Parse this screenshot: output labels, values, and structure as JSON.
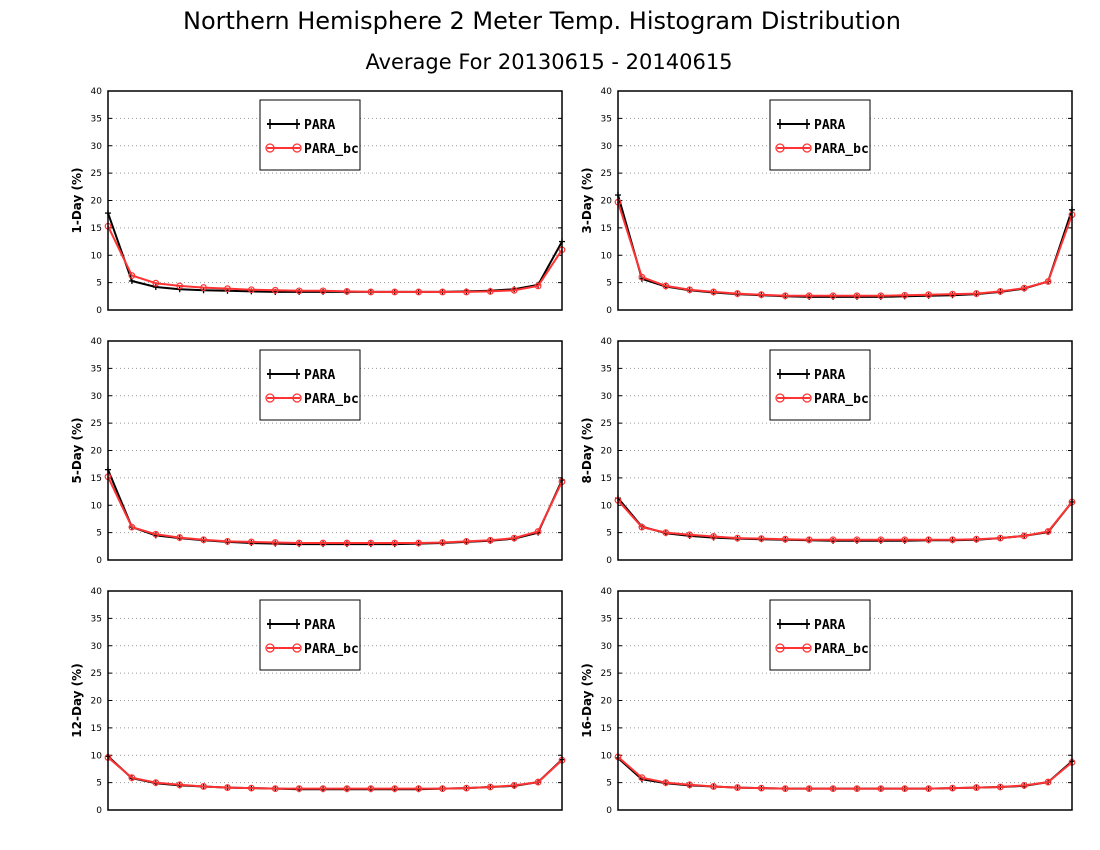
{
  "title": "Northern Hemisphere 2 Meter Temp. Histogram Distribution",
  "subtitle": "Average For 20130615 - 20140615",
  "colors": {
    "PARA": "#000000",
    "PARA_bc": "#ff3333",
    "grid": "#999999"
  },
  "chart_data": [
    {
      "type": "line",
      "ylabel": "1-Day (%)",
      "ylim": [
        0,
        40
      ],
      "yticks": [
        0,
        5,
        10,
        15,
        20,
        25,
        30,
        35,
        40
      ],
      "xticks_labeled": false,
      "grid": "horizontal dotted",
      "legend_placement": "top-left",
      "series": [
        {
          "name": "PARA",
          "marker": "plus",
          "values": [
            17.7,
            5.3,
            4.2,
            3.8,
            3.6,
            3.5,
            3.4,
            3.3,
            3.3,
            3.3,
            3.3,
            3.3,
            3.3,
            3.3,
            3.3,
            3.4,
            3.5,
            3.8,
            4.6,
            12.5
          ]
        },
        {
          "name": "PARA_bc",
          "marker": "circle",
          "values": [
            15.3,
            6.3,
            4.9,
            4.4,
            4.1,
            3.9,
            3.7,
            3.6,
            3.5,
            3.5,
            3.4,
            3.3,
            3.3,
            3.3,
            3.3,
            3.3,
            3.4,
            3.6,
            4.4,
            11.0
          ]
        }
      ]
    },
    {
      "type": "line",
      "ylabel": "3-Day (%)",
      "ylim": [
        0,
        40
      ],
      "yticks": [
        0,
        5,
        10,
        15,
        20,
        25,
        30,
        35,
        40
      ],
      "xticks_labeled": false,
      "grid": "horizontal dotted",
      "legend_placement": "top-center",
      "series": [
        {
          "name": "PARA",
          "marker": "plus",
          "values": [
            21.0,
            5.7,
            4.3,
            3.6,
            3.2,
            2.9,
            2.7,
            2.5,
            2.4,
            2.4,
            2.4,
            2.4,
            2.5,
            2.6,
            2.7,
            2.9,
            3.3,
            3.9,
            5.2,
            18.3
          ]
        },
        {
          "name": "PARA_bc",
          "marker": "circle",
          "values": [
            19.7,
            6.0,
            4.4,
            3.7,
            3.3,
            3.0,
            2.8,
            2.6,
            2.6,
            2.6,
            2.6,
            2.6,
            2.7,
            2.8,
            2.9,
            3.0,
            3.4,
            4.0,
            5.2,
            17.4
          ]
        }
      ]
    },
    {
      "type": "line",
      "ylabel": "5-Day (%)",
      "ylim": [
        0,
        40
      ],
      "yticks": [
        0,
        5,
        10,
        15,
        20,
        25,
        30,
        35,
        40
      ],
      "xticks_labeled": false,
      "grid": "horizontal dotted",
      "legend_placement": "top-left",
      "series": [
        {
          "name": "PARA",
          "marker": "plus",
          "values": [
            16.5,
            6.0,
            4.5,
            4.0,
            3.6,
            3.3,
            3.1,
            3.0,
            2.9,
            2.9,
            2.9,
            2.9,
            2.9,
            3.0,
            3.1,
            3.3,
            3.5,
            3.9,
            5.0,
            14.6
          ]
        },
        {
          "name": "PARA_bc",
          "marker": "circle",
          "values": [
            15.2,
            6.0,
            4.7,
            4.1,
            3.7,
            3.4,
            3.3,
            3.2,
            3.1,
            3.1,
            3.1,
            3.1,
            3.1,
            3.1,
            3.2,
            3.4,
            3.6,
            4.0,
            5.2,
            14.3
          ]
        }
      ]
    },
    {
      "type": "line",
      "ylabel": "8-Day (%)",
      "ylim": [
        0,
        40
      ],
      "yticks": [
        0,
        5,
        10,
        15,
        20,
        25,
        30,
        35,
        40
      ],
      "xticks_labeled": false,
      "grid": "horizontal dotted",
      "legend_placement": "top-center",
      "series": [
        {
          "name": "PARA",
          "marker": "plus",
          "values": [
            11.3,
            6.1,
            4.9,
            4.4,
            4.1,
            3.9,
            3.8,
            3.7,
            3.6,
            3.5,
            3.5,
            3.5,
            3.5,
            3.6,
            3.6,
            3.7,
            4.0,
            4.4,
            5.1,
            10.6
          ]
        },
        {
          "name": "PARA_bc",
          "marker": "circle",
          "values": [
            10.9,
            6.0,
            5.0,
            4.6,
            4.3,
            4.0,
            3.9,
            3.8,
            3.7,
            3.7,
            3.7,
            3.7,
            3.7,
            3.7,
            3.7,
            3.8,
            4.0,
            4.4,
            5.2,
            10.6
          ]
        }
      ]
    },
    {
      "type": "line",
      "ylabel": "12-Day (%)",
      "ylim": [
        0,
        40
      ],
      "yticks": [
        0,
        5,
        10,
        15,
        20,
        25,
        30,
        35,
        40
      ],
      "xticks_labeled": false,
      "grid": "horizontal dotted",
      "legend_placement": "top-left",
      "series": [
        {
          "name": "PARA",
          "marker": "plus",
          "values": [
            9.8,
            5.8,
            4.9,
            4.5,
            4.3,
            4.1,
            4.0,
            3.9,
            3.8,
            3.8,
            3.8,
            3.8,
            3.8,
            3.8,
            3.9,
            4.0,
            4.2,
            4.4,
            5.1,
            9.2
          ]
        },
        {
          "name": "PARA_bc",
          "marker": "circle",
          "values": [
            9.6,
            5.9,
            5.0,
            4.6,
            4.3,
            4.1,
            4.0,
            3.9,
            3.9,
            3.9,
            3.9,
            3.9,
            3.9,
            3.9,
            3.9,
            4.0,
            4.2,
            4.5,
            5.1,
            9.1
          ]
        }
      ]
    },
    {
      "type": "line",
      "ylabel": "16-Day (%)",
      "ylim": [
        0,
        40
      ],
      "yticks": [
        0,
        5,
        10,
        15,
        20,
        25,
        30,
        35,
        40
      ],
      "xticks_labeled": false,
      "grid": "horizontal dotted",
      "legend_placement": "top-center",
      "series": [
        {
          "name": "PARA",
          "marker": "plus",
          "values": [
            9.5,
            5.6,
            4.9,
            4.5,
            4.3,
            4.1,
            4.0,
            3.9,
            3.9,
            3.9,
            3.9,
            3.9,
            3.9,
            3.9,
            4.0,
            4.1,
            4.2,
            4.4,
            5.1,
            8.9
          ]
        },
        {
          "name": "PARA_bc",
          "marker": "circle",
          "values": [
            9.7,
            5.9,
            5.0,
            4.6,
            4.3,
            4.1,
            4.0,
            3.9,
            3.9,
            3.9,
            3.9,
            3.9,
            3.9,
            3.9,
            4.0,
            4.1,
            4.2,
            4.5,
            5.1,
            8.7
          ]
        }
      ]
    }
  ]
}
